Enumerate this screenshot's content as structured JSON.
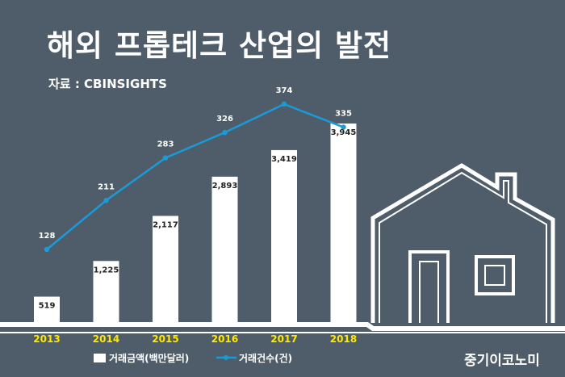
{
  "title": "해외 프롭테크 산업의 발전",
  "source": "자료 : CBINSIGHTS",
  "brand": "중기이코노미",
  "colors": {
    "background": "#4f5d6a",
    "bar": "#ffffff",
    "line": "#1a9ad6",
    "year_label": "#ffe800",
    "outline": "#ffffff"
  },
  "icons": [
    "house-outline-icon"
  ],
  "chart_data": {
    "type": "bar",
    "categories": [
      "2013",
      "2014",
      "2015",
      "2016",
      "2017",
      "2018"
    ],
    "series": [
      {
        "name": "거래금액(백만달러)",
        "type": "bar",
        "values": [
          519,
          1225,
          2117,
          2893,
          3419,
          3945
        ],
        "labels": [
          "519",
          "1,225",
          "2,117",
          "2,893",
          "3,419",
          "3,945"
        ]
      },
      {
        "name": "거래건수(건)",
        "type": "line",
        "values": [
          128,
          211,
          283,
          326,
          374,
          335
        ],
        "labels": [
          "128",
          "211",
          "283",
          "326",
          "374",
          "335"
        ]
      }
    ],
    "legend": "bottom-left",
    "grid": false
  }
}
